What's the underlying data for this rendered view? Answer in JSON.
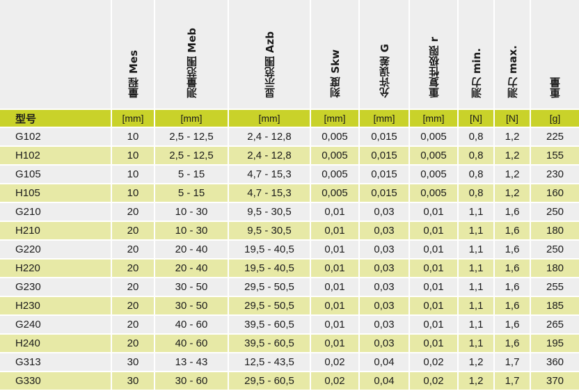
{
  "headers": [
    {
      "zh": "量程",
      "en": "Mes"
    },
    {
      "zh": "测量范围",
      "en": "Meb"
    },
    {
      "zh": "显示范围",
      "en": "Azb"
    },
    {
      "zh": "刻度",
      "en": "Skw"
    },
    {
      "zh": "允许误差",
      "en": "G"
    },
    {
      "zh": "重复性极限",
      "en": "r"
    },
    {
      "zh": "测力",
      "en": "min."
    },
    {
      "zh": "测力",
      "en": "max."
    },
    {
      "zh": "重量",
      "en": ""
    }
  ],
  "type_label": "型号",
  "units": [
    "[mm]",
    "[mm]",
    "[mm]",
    "[mm]",
    "[mm]",
    "[mm]",
    "[N]",
    "[N]",
    "[g]"
  ],
  "rows": [
    {
      "type": "G102",
      "cells": [
        "10",
        "2,5 - 12,5",
        "2,4 - 12,8",
        "0,005",
        "0,015",
        "0,005",
        "0,8",
        "1,2",
        "225"
      ]
    },
    {
      "type": "H102",
      "cells": [
        "10",
        "2,5 - 12,5",
        "2,4 - 12,8",
        "0,005",
        "0,015",
        "0,005",
        "0,8",
        "1,2",
        "155"
      ]
    },
    {
      "type": "G105",
      "cells": [
        "10",
        "5 - 15",
        "4,7 - 15,3",
        "0,005",
        "0,015",
        "0,005",
        "0,8",
        "1,2",
        "230"
      ]
    },
    {
      "type": "H105",
      "cells": [
        "10",
        "5 - 15",
        "4,7 - 15,3",
        "0,005",
        "0,015",
        "0,005",
        "0,8",
        "1,2",
        "160"
      ]
    },
    {
      "type": "G210",
      "cells": [
        "20",
        "10 - 30",
        "9,5 - 30,5",
        "0,01",
        "0,03",
        "0,01",
        "1,1",
        "1,6",
        "250"
      ]
    },
    {
      "type": "H210",
      "cells": [
        "20",
        "10 - 30",
        "9,5 - 30,5",
        "0,01",
        "0,03",
        "0,01",
        "1,1",
        "1,6",
        "180"
      ]
    },
    {
      "type": "G220",
      "cells": [
        "20",
        "20 - 40",
        "19,5 - 40,5",
        "0,01",
        "0,03",
        "0,01",
        "1,1",
        "1,6",
        "250"
      ]
    },
    {
      "type": "H220",
      "cells": [
        "20",
        "20 - 40",
        "19,5 - 40,5",
        "0,01",
        "0,03",
        "0,01",
        "1,1",
        "1,6",
        "180"
      ]
    },
    {
      "type": "G230",
      "cells": [
        "20",
        "30 - 50",
        "29,5 - 50,5",
        "0,01",
        "0,03",
        "0,01",
        "1,1",
        "1,6",
        "255"
      ]
    },
    {
      "type": "H230",
      "cells": [
        "20",
        "30 - 50",
        "29,5 - 50,5",
        "0,01",
        "0,03",
        "0,01",
        "1,1",
        "1,6",
        "185"
      ]
    },
    {
      "type": "G240",
      "cells": [
        "20",
        "40 - 60",
        "39,5 - 60,5",
        "0,01",
        "0,03",
        "0,01",
        "1,1",
        "1,6",
        "265"
      ]
    },
    {
      "type": "H240",
      "cells": [
        "20",
        "40 - 60",
        "39,5 - 60,5",
        "0,01",
        "0,03",
        "0,01",
        "1,1",
        "1,6",
        "195"
      ]
    },
    {
      "type": "G313",
      "cells": [
        "30",
        "13 - 43",
        "12,5 - 43,5",
        "0,02",
        "0,04",
        "0,02",
        "1,2",
        "1,7",
        "360"
      ]
    },
    {
      "type": "G330",
      "cells": [
        "30",
        "30 - 60",
        "29,5 - 60,5",
        "0,02",
        "0,04",
        "0,02",
        "1,2",
        "1,7",
        "370"
      ]
    }
  ],
  "colors": {
    "header_bg": "#eeeeee",
    "unit_row_bg": "#c9d22a",
    "row_odd_bg": "#eeeeee",
    "row_even_bg": "#e7e9a6"
  }
}
